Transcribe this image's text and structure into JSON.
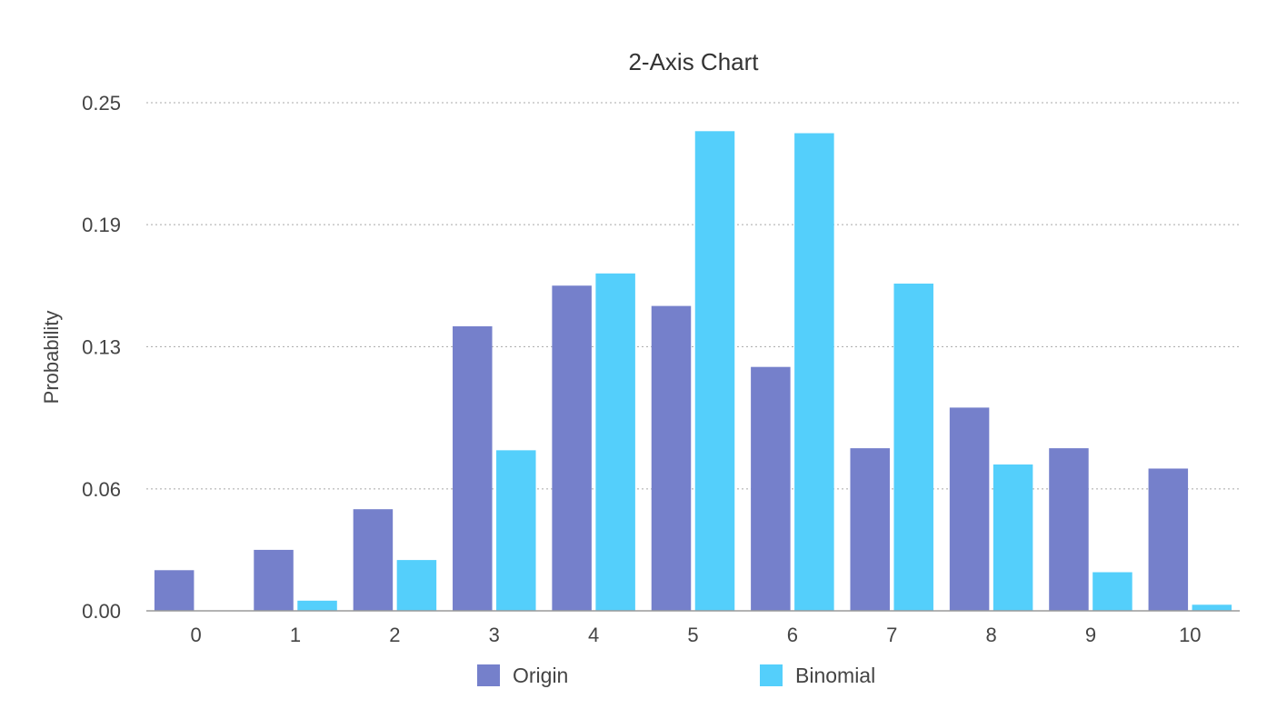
{
  "chart_data": {
    "type": "bar",
    "title": "2-Axis Chart",
    "xlabel": "",
    "ylabel": "Probability",
    "categories": [
      "0",
      "1",
      "2",
      "3",
      "4",
      "5",
      "6",
      "7",
      "8",
      "9",
      "10"
    ],
    "series": [
      {
        "name": "Origin",
        "color": "#7580cb",
        "values": [
          0.02,
          0.03,
          0.05,
          0.14,
          0.16,
          0.15,
          0.12,
          0.08,
          0.1,
          0.08,
          0.07
        ]
      },
      {
        "name": "Binomial",
        "color": "#54cffb",
        "values": [
          0.0,
          0.005,
          0.025,
          0.079,
          0.166,
          0.236,
          0.235,
          0.161,
          0.072,
          0.019,
          0.003
        ]
      }
    ],
    "ylim": [
      0,
      0.25
    ],
    "yticks": [
      "0.00",
      "0.06",
      "0.13",
      "0.19",
      "0.25"
    ],
    "grid": true,
    "legend_position": "bottom"
  }
}
